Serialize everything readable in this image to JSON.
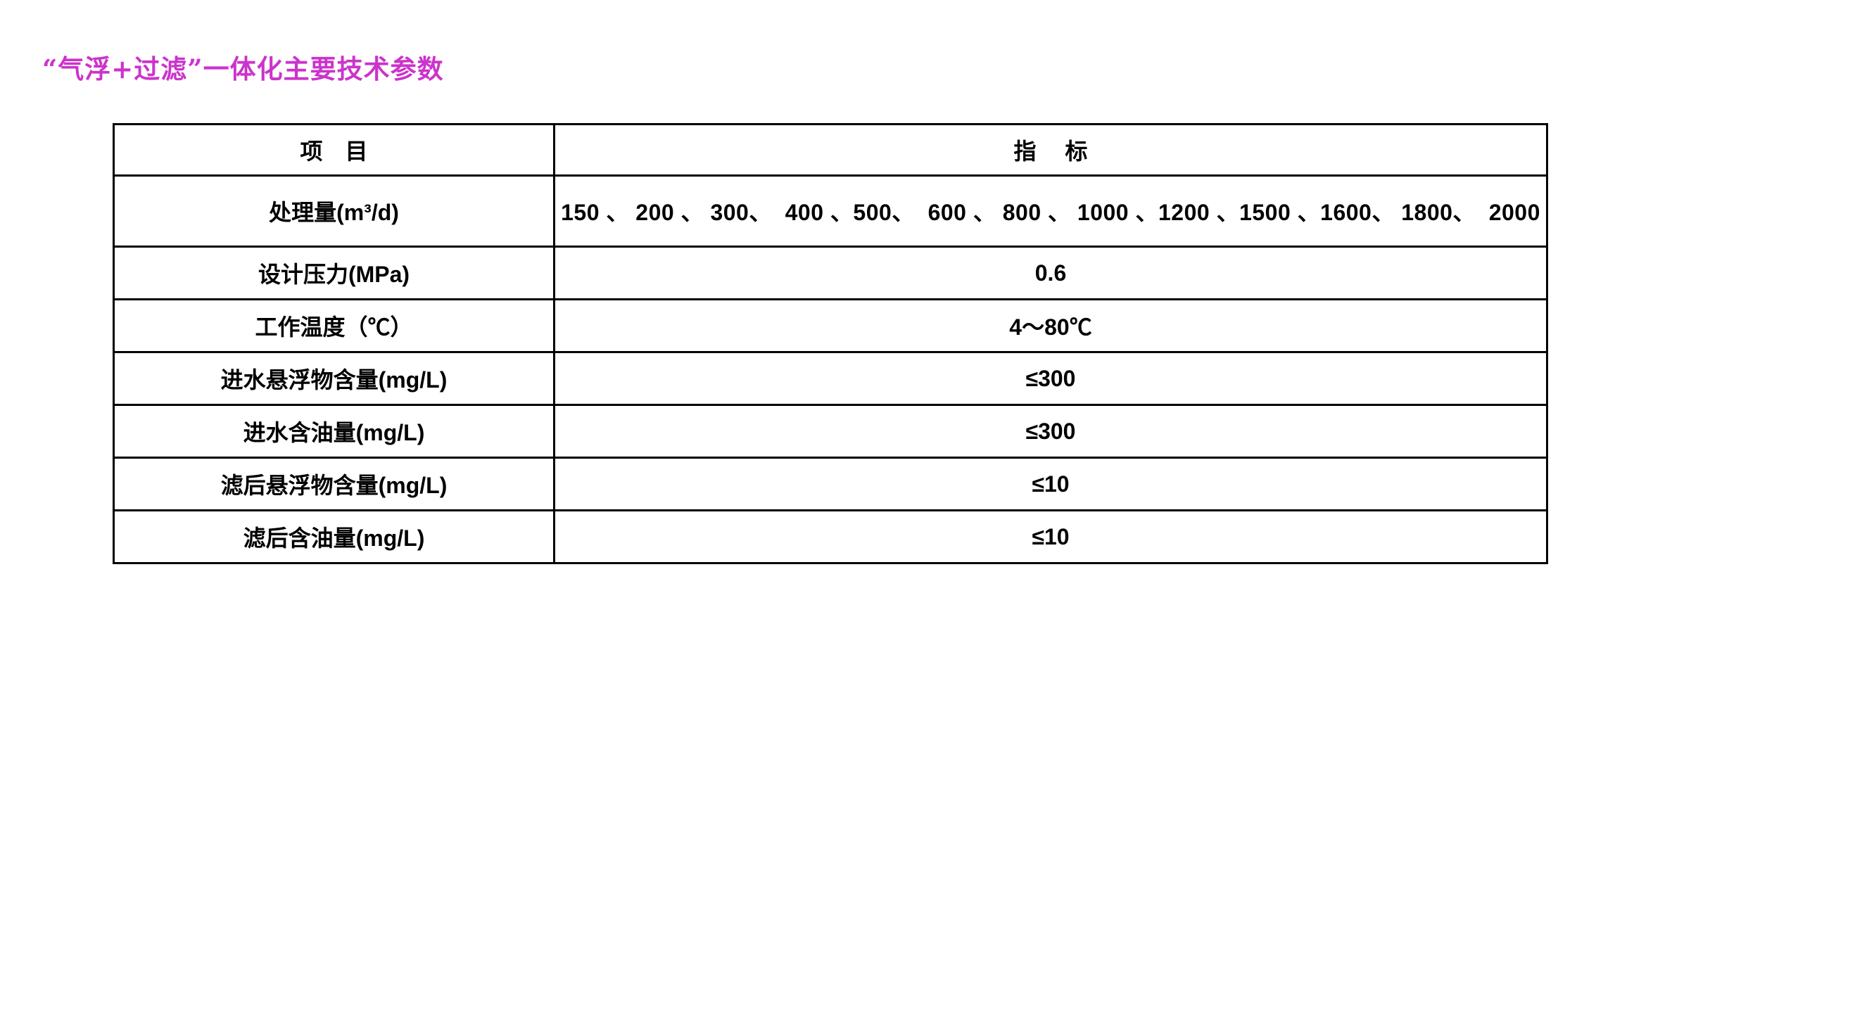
{
  "page": {
    "title": "“气浮+过滤”一体化主要技术参数",
    "title_color": "#cc33cc"
  },
  "table": {
    "header": {
      "item": "项　目",
      "indicator": "指　 标"
    },
    "rows": [
      {
        "label": "处理量(m³/d)",
        "value": "150 、 200 、 300、  400 、500、  600 、 800 、 1000 、1200 、1500 、1600、 1800、  2000"
      },
      {
        "label": "设计压力(MPa)",
        "value": "0.6"
      },
      {
        "label": "工作温度（℃）",
        "value": "4～80℃"
      },
      {
        "label": "进水悬浮物含量(mg/L)",
        "value": "≤300"
      },
      {
        "label": "进水含油量(mg/L)",
        "value": "≤300"
      },
      {
        "label": "滤后悬浮物含量(mg/L)",
        "value": "≤10"
      },
      {
        "label": "滤后含油量(mg/L)",
        "value": "≤10"
      }
    ]
  }
}
